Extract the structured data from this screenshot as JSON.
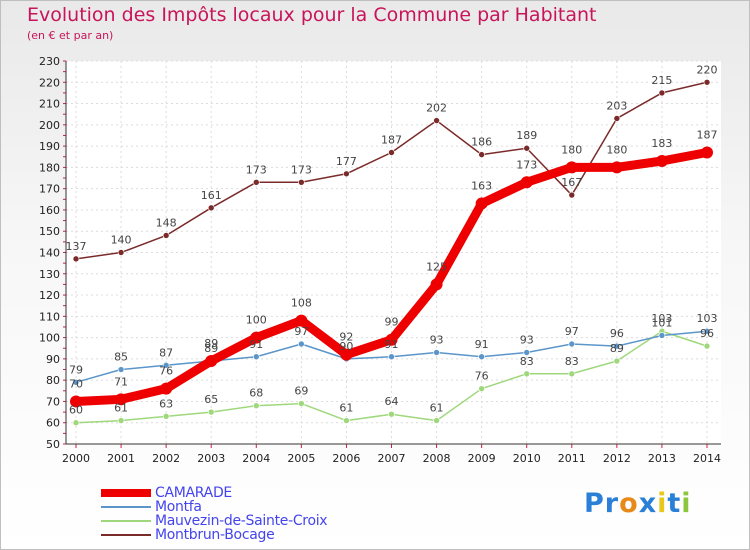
{
  "chart_data": {
    "type": "line",
    "title": "Evolution des Impôts locaux pour la Commune par Habitant",
    "subtitle": "(en € et par an)",
    "xlabel": "",
    "ylabel": "",
    "categories": [
      "2000",
      "2001",
      "2002",
      "2003",
      "2004",
      "2005",
      "2006",
      "2007",
      "2008",
      "2009",
      "2010",
      "2011",
      "2012",
      "2013",
      "2014"
    ],
    "ylim": [
      50,
      230
    ],
    "ytick_step": 10,
    "grid": true,
    "legend_position": "bottom-left",
    "series": [
      {
        "name": "CAMARADE",
        "color": "#ee0000",
        "emphasis": true,
        "values": [
          70,
          71,
          76,
          89,
          100,
          108,
          92,
          99,
          125,
          163,
          173,
          180,
          180,
          183,
          187
        ]
      },
      {
        "name": "Montfa",
        "color": "#5b95c9",
        "values": [
          79,
          85,
          87,
          89,
          91,
          97,
          90,
          91,
          93,
          91,
          93,
          97,
          96,
          101,
          103
        ]
      },
      {
        "name": "Mauvezin-de-Sainte-Croix",
        "color": "#9fd87c",
        "values": [
          60,
          61,
          63,
          65,
          68,
          69,
          61,
          64,
          61,
          76,
          83,
          83,
          89,
          103,
          96
        ]
      },
      {
        "name": "Montbrun-Bocage",
        "color": "#7b2a2a",
        "values": [
          137,
          140,
          148,
          161,
          173,
          173,
          177,
          187,
          202,
          186,
          189,
          167,
          203,
          215,
          220
        ]
      }
    ]
  },
  "logo": {
    "text": "Proxiti",
    "letters": [
      "P",
      "r",
      "o",
      "x",
      "i",
      "t",
      "i"
    ],
    "colors": [
      "#2a7fd6",
      "#2a7fd6",
      "#e88a1a",
      "#2a7fd6",
      "#e8c81a",
      "#2a7fd6",
      "#8cc63f"
    ]
  }
}
